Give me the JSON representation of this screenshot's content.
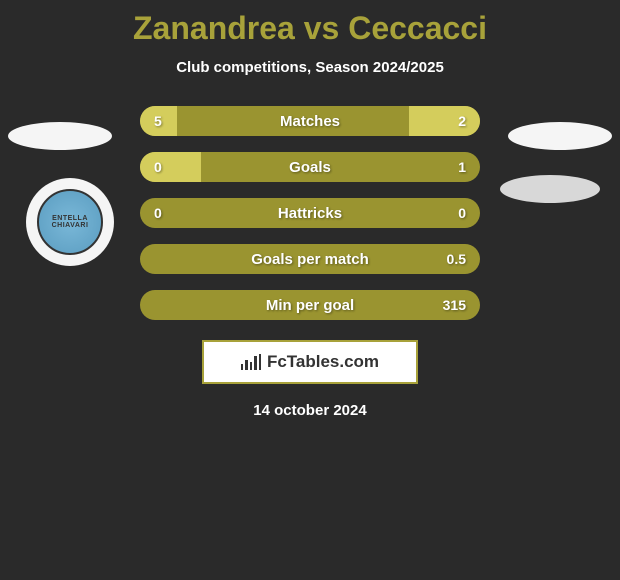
{
  "title": {
    "player1": "Zanandrea",
    "vs": "vs",
    "player2": "Ceccacci"
  },
  "subtitle": "Club competitions, Season 2024/2025",
  "club_left": {
    "name": "ENTELLA",
    "sub": "CHIAVARI"
  },
  "colors": {
    "background": "#2a2a2a",
    "accent": "#a8a23a",
    "bar_base": "#9a9430",
    "bar_fill": "#d4cd5c",
    "text": "#ffffff",
    "badge_bg": "#f5f5f5",
    "club_gradient_inner": "#7ab8d8",
    "club_gradient_outer": "#5a9cc0"
  },
  "stats": [
    {
      "label": "Matches",
      "left_val": "5",
      "right_val": "2",
      "left_pct": 11,
      "right_pct": 21,
      "fill_side": "right"
    },
    {
      "label": "Goals",
      "left_val": "0",
      "right_val": "1",
      "left_pct": 18,
      "right_pct": 0,
      "fill_side": "left"
    },
    {
      "label": "Hattricks",
      "left_val": "0",
      "right_val": "0",
      "left_pct": 0,
      "right_pct": 0,
      "fill_side": "none"
    },
    {
      "label": "Goals per match",
      "left_val": "",
      "right_val": "0.5",
      "left_pct": 0,
      "right_pct": 0,
      "fill_side": "none"
    },
    {
      "label": "Min per goal",
      "left_val": "",
      "right_val": "315",
      "left_pct": 0,
      "right_pct": 0,
      "fill_side": "none"
    }
  ],
  "footer_brand": "FcTables.com",
  "date": "14 october 2024",
  "layout": {
    "stat_row_height": 30,
    "stat_row_gap": 16,
    "stat_width": 340,
    "border_radius": 15
  },
  "typography": {
    "title_fontsize": 32,
    "subtitle_fontsize": 15,
    "stat_label_fontsize": 15,
    "stat_val_fontsize": 14,
    "date_fontsize": 15,
    "font_family": "Arial, sans-serif"
  }
}
